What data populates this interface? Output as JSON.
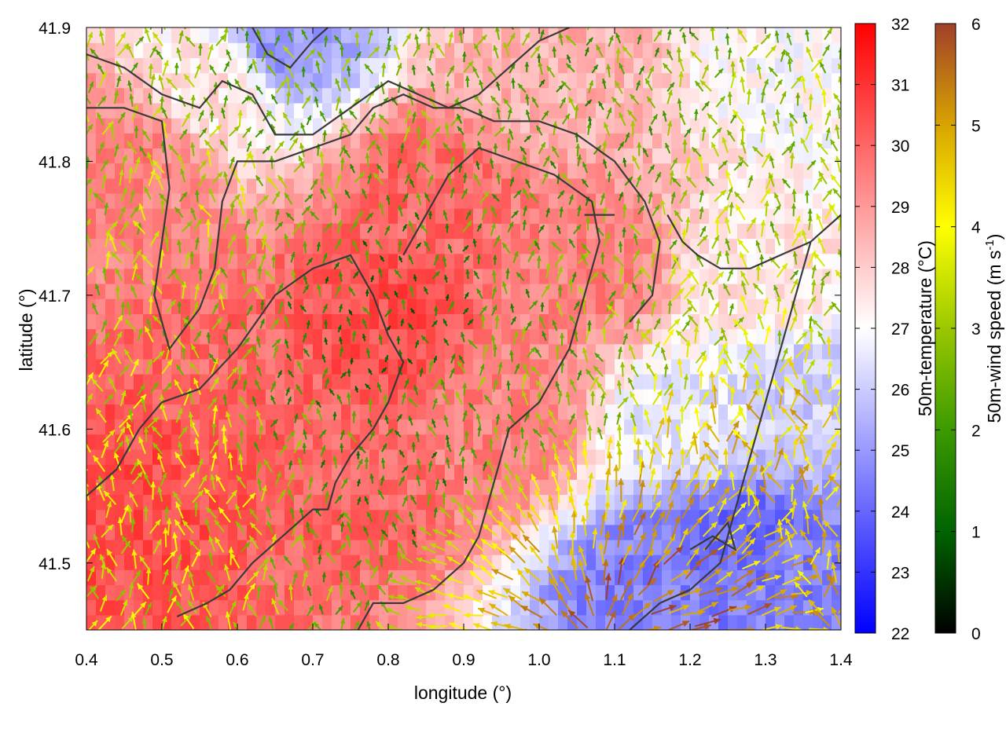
{
  "chart_data": {
    "type": "heatmap",
    "title": "",
    "xlabel": "longitude (°)",
    "ylabel": "latitude (°)",
    "xlim": [
      0.4,
      1.4
    ],
    "ylim": [
      41.45,
      41.9
    ],
    "xticks": [
      0.4,
      0.5,
      0.6,
      0.7,
      0.8,
      0.9,
      1.0,
      1.1,
      1.2,
      1.3,
      1.4
    ],
    "xtick_labels": [
      "0.4",
      "0.5",
      "0.6",
      "0.7",
      "0.8",
      "0.9",
      "1.0",
      "1.1",
      "1.2",
      "1.3",
      "1.4"
    ],
    "yticks": [
      41.5,
      41.6,
      41.7,
      41.8,
      41.9
    ],
    "ytick_labels": [
      "41.5",
      "41.6",
      "41.7",
      "41.8",
      "41.9"
    ],
    "grid": false,
    "temperature_field": {
      "label": "50m-temperature (°C)",
      "range": [
        22,
        32
      ],
      "ticks": [
        "22",
        "23",
        "24",
        "25",
        "26",
        "27",
        "28",
        "29",
        "30",
        "31",
        "32"
      ],
      "colors": {
        "low": "#0000ff",
        "mid": "#ffffff",
        "high": "#ff0000"
      },
      "mid_value": 27,
      "regions": [
        {
          "lon": 0.5,
          "lat": 41.55,
          "temp": 30.5
        },
        {
          "lon": 0.6,
          "lat": 41.65,
          "temp": 30.0
        },
        {
          "lon": 0.8,
          "lat": 41.68,
          "temp": 30.5
        },
        {
          "lon": 0.85,
          "lat": 41.78,
          "temp": 30.0
        },
        {
          "lon": 0.75,
          "lat": 41.55,
          "temp": 30.0
        },
        {
          "lon": 0.95,
          "lat": 41.6,
          "temp": 29.5
        },
        {
          "lon": 1.05,
          "lat": 41.72,
          "temp": 29.5
        },
        {
          "lon": 0.45,
          "lat": 41.8,
          "temp": 29.5
        },
        {
          "lon": 0.66,
          "lat": 41.89,
          "temp": 25.0
        },
        {
          "lon": 0.58,
          "lat": 41.86,
          "temp": 27.5
        },
        {
          "lon": 1.0,
          "lat": 41.86,
          "temp": 28.5
        },
        {
          "lon": 1.35,
          "lat": 41.86,
          "temp": 27.0
        },
        {
          "lon": 1.3,
          "lat": 41.72,
          "temp": 27.5
        },
        {
          "lon": 1.35,
          "lat": 41.62,
          "temp": 26.0
        },
        {
          "lon": 1.25,
          "lat": 41.52,
          "temp": 24.0
        },
        {
          "lon": 1.15,
          "lat": 41.48,
          "temp": 24.5
        },
        {
          "lon": 1.35,
          "lat": 41.48,
          "temp": 24.5
        },
        {
          "lon": 1.2,
          "lat": 41.6,
          "temp": 26.5
        }
      ]
    },
    "wind_field": {
      "label": "50m-wind speed (m s-1)",
      "range": [
        0,
        6
      ],
      "ticks": [
        "0",
        "1",
        "2",
        "3",
        "4",
        "5",
        "6"
      ],
      "colors": [
        "#000000",
        "#006400",
        "#3c9a00",
        "#9ac800",
        "#ffff00",
        "#d8a400",
        "#a0402a"
      ],
      "speed_regions": [
        {
          "lon": 0.45,
          "lat": 41.55,
          "speed": 3.5
        },
        {
          "lon": 0.55,
          "lat": 41.75,
          "speed": 3.0
        },
        {
          "lon": 0.8,
          "lat": 41.68,
          "speed": 1.5
        },
        {
          "lon": 0.85,
          "lat": 41.55,
          "speed": 1.8
        },
        {
          "lon": 0.75,
          "lat": 41.85,
          "speed": 2.5
        },
        {
          "lon": 1.0,
          "lat": 41.8,
          "speed": 2.2
        },
        {
          "lon": 1.05,
          "lat": 41.5,
          "speed": 4.5
        },
        {
          "lon": 1.12,
          "lat": 41.47,
          "speed": 5.6
        },
        {
          "lon": 1.3,
          "lat": 41.55,
          "speed": 4.5
        },
        {
          "lon": 1.3,
          "lat": 41.75,
          "speed": 3.0
        },
        {
          "lon": 0.95,
          "lat": 41.62,
          "speed": 2.5
        }
      ],
      "divergence_center": {
        "lon": 1.08,
        "lat": 41.44
      }
    },
    "contours": [
      [
        [
          0.4,
          41.88
        ],
        [
          0.45,
          41.87
        ],
        [
          0.5,
          41.85
        ],
        [
          0.55,
          41.84
        ],
        [
          0.58,
          41.86
        ],
        [
          0.62,
          41.85
        ],
        [
          0.65,
          41.82
        ],
        [
          0.7,
          41.82
        ],
        [
          0.75,
          41.84
        ],
        [
          0.8,
          41.86
        ],
        [
          0.84,
          41.85
        ],
        [
          0.88,
          41.84
        ],
        [
          0.92,
          41.85
        ],
        [
          0.96,
          41.87
        ],
        [
          1.0,
          41.89
        ],
        [
          1.04,
          41.9
        ]
      ],
      [
        [
          0.4,
          41.84
        ],
        [
          0.45,
          41.84
        ],
        [
          0.5,
          41.83
        ],
        [
          0.51,
          41.78
        ],
        [
          0.5,
          41.74
        ],
        [
          0.49,
          41.7
        ],
        [
          0.51,
          41.66
        ],
        [
          0.55,
          41.69
        ],
        [
          0.57,
          41.72
        ],
        [
          0.58,
          41.77
        ],
        [
          0.6,
          41.8
        ],
        [
          0.65,
          41.8
        ],
        [
          0.7,
          41.81
        ],
        [
          0.75,
          41.82
        ],
        [
          0.78,
          41.84
        ],
        [
          0.82,
          41.85
        ],
        [
          0.86,
          41.84
        ],
        [
          0.9,
          41.84
        ],
        [
          0.94,
          41.83
        ],
        [
          1.0,
          41.83
        ],
        [
          1.05,
          41.82
        ],
        [
          1.1,
          41.8
        ],
        [
          1.14,
          41.77
        ],
        [
          1.16,
          41.74
        ],
        [
          1.15,
          41.7
        ],
        [
          1.12,
          41.68
        ]
      ],
      [
        [
          0.4,
          41.55
        ],
        [
          0.44,
          41.57
        ],
        [
          0.47,
          41.6
        ],
        [
          0.5,
          41.62
        ],
        [
          0.55,
          41.63
        ],
        [
          0.6,
          41.66
        ],
        [
          0.65,
          41.7
        ],
        [
          0.7,
          41.72
        ],
        [
          0.75,
          41.73
        ],
        [
          0.78,
          41.7
        ],
        [
          0.8,
          41.67
        ],
        [
          0.82,
          41.65
        ],
        [
          0.8,
          41.62
        ],
        [
          0.78,
          41.6
        ],
        [
          0.75,
          41.58
        ],
        [
          0.73,
          41.56
        ],
        [
          0.72,
          41.54
        ],
        [
          0.7,
          41.54
        ],
        [
          0.66,
          41.52
        ],
        [
          0.62,
          41.5
        ],
        [
          0.59,
          41.48
        ],
        [
          0.56,
          41.47
        ],
        [
          0.52,
          41.46
        ]
      ],
      [
        [
          0.76,
          41.45
        ],
        [
          0.78,
          41.47
        ],
        [
          0.82,
          41.47
        ],
        [
          0.86,
          41.48
        ],
        [
          0.9,
          41.5
        ],
        [
          0.92,
          41.52
        ],
        [
          0.94,
          41.56
        ],
        [
          0.96,
          41.6
        ],
        [
          1.0,
          41.62
        ],
        [
          1.04,
          41.66
        ],
        [
          1.06,
          41.7
        ],
        [
          1.08,
          41.74
        ],
        [
          1.07,
          41.77
        ],
        [
          1.02,
          41.79
        ],
        [
          0.97,
          41.8
        ],
        [
          0.92,
          41.81
        ],
        [
          0.88,
          41.79
        ],
        [
          0.85,
          41.76
        ],
        [
          0.82,
          41.73
        ]
      ],
      [
        [
          1.12,
          41.45
        ],
        [
          1.16,
          41.47
        ],
        [
          1.2,
          41.48
        ],
        [
          1.24,
          41.5
        ],
        [
          1.26,
          41.54
        ],
        [
          1.28,
          41.58
        ],
        [
          1.3,
          41.62
        ],
        [
          1.32,
          41.66
        ],
        [
          1.34,
          41.7
        ],
        [
          1.36,
          41.74
        ],
        [
          1.4,
          41.76
        ]
      ],
      [
        [
          1.17,
          41.76
        ],
        [
          1.19,
          41.74
        ],
        [
          1.21,
          41.73
        ],
        [
          1.24,
          41.72
        ],
        [
          1.28,
          41.72
        ],
        [
          1.32,
          41.73
        ],
        [
          1.36,
          41.74
        ]
      ],
      [
        [
          1.2,
          41.51
        ],
        [
          1.23,
          41.52
        ],
        [
          1.26,
          41.51
        ],
        [
          1.25,
          41.53
        ],
        [
          1.22,
          41.51
        ]
      ],
      [
        [
          1.06,
          41.76
        ],
        [
          1.08,
          41.76
        ],
        [
          1.1,
          41.76
        ],
        [
          1.08,
          41.76
        ]
      ],
      [
        [
          0.62,
          41.9
        ],
        [
          0.64,
          41.88
        ],
        [
          0.67,
          41.87
        ],
        [
          0.7,
          41.89
        ],
        [
          0.72,
          41.9
        ]
      ]
    ]
  }
}
